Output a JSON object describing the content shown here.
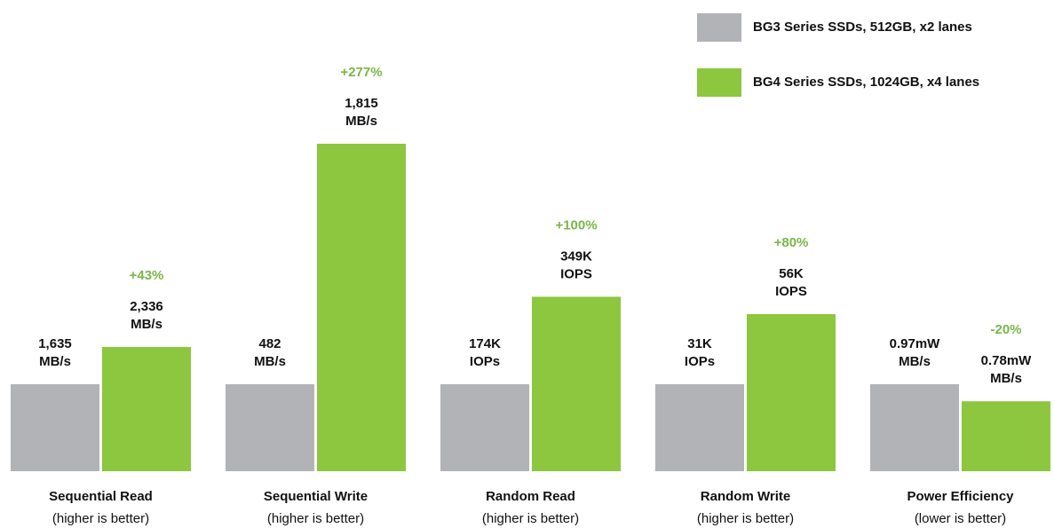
{
  "chart_data": {
    "type": "bar",
    "categories": [
      "Sequential Read",
      "Sequential Write",
      "Random Read",
      "Random Write",
      "Power Efficiency"
    ],
    "category_notes": [
      "(higher is better)",
      "(higher is better)",
      "(higher is better)",
      "(higher is better)",
      "(lower is better)"
    ],
    "series": [
      {
        "name": "BG3 Series SSDs, 512GB, x2 lanes",
        "color": "#b1b3b6",
        "values": [
          1635,
          482,
          174000,
          31000,
          0.97
        ],
        "value_labels": [
          [
            "1,635",
            "MB/s"
          ],
          [
            "482",
            "MB/s"
          ],
          [
            "174K",
            "IOPs"
          ],
          [
            "31K",
            "IOPs"
          ],
          [
            "0.97mW",
            "MB/s"
          ]
        ]
      },
      {
        "name": "BG4 Series SSDs, 1024GB, x4 lanes",
        "color": "#8dc63f",
        "values": [
          2336,
          1815,
          349000,
          56000,
          0.78
        ],
        "value_labels": [
          [
            "2,336",
            "MB/s"
          ],
          [
            "1,815",
            "MB/s"
          ],
          [
            "349K",
            "IOPS"
          ],
          [
            "56K",
            "IOPS"
          ],
          [
            "0.78mW",
            "MB/s"
          ]
        ]
      }
    ],
    "changes": [
      "+43%",
      "+277%",
      "+100%",
      "+80%",
      "-20%"
    ],
    "change_color": "#7ab648"
  }
}
